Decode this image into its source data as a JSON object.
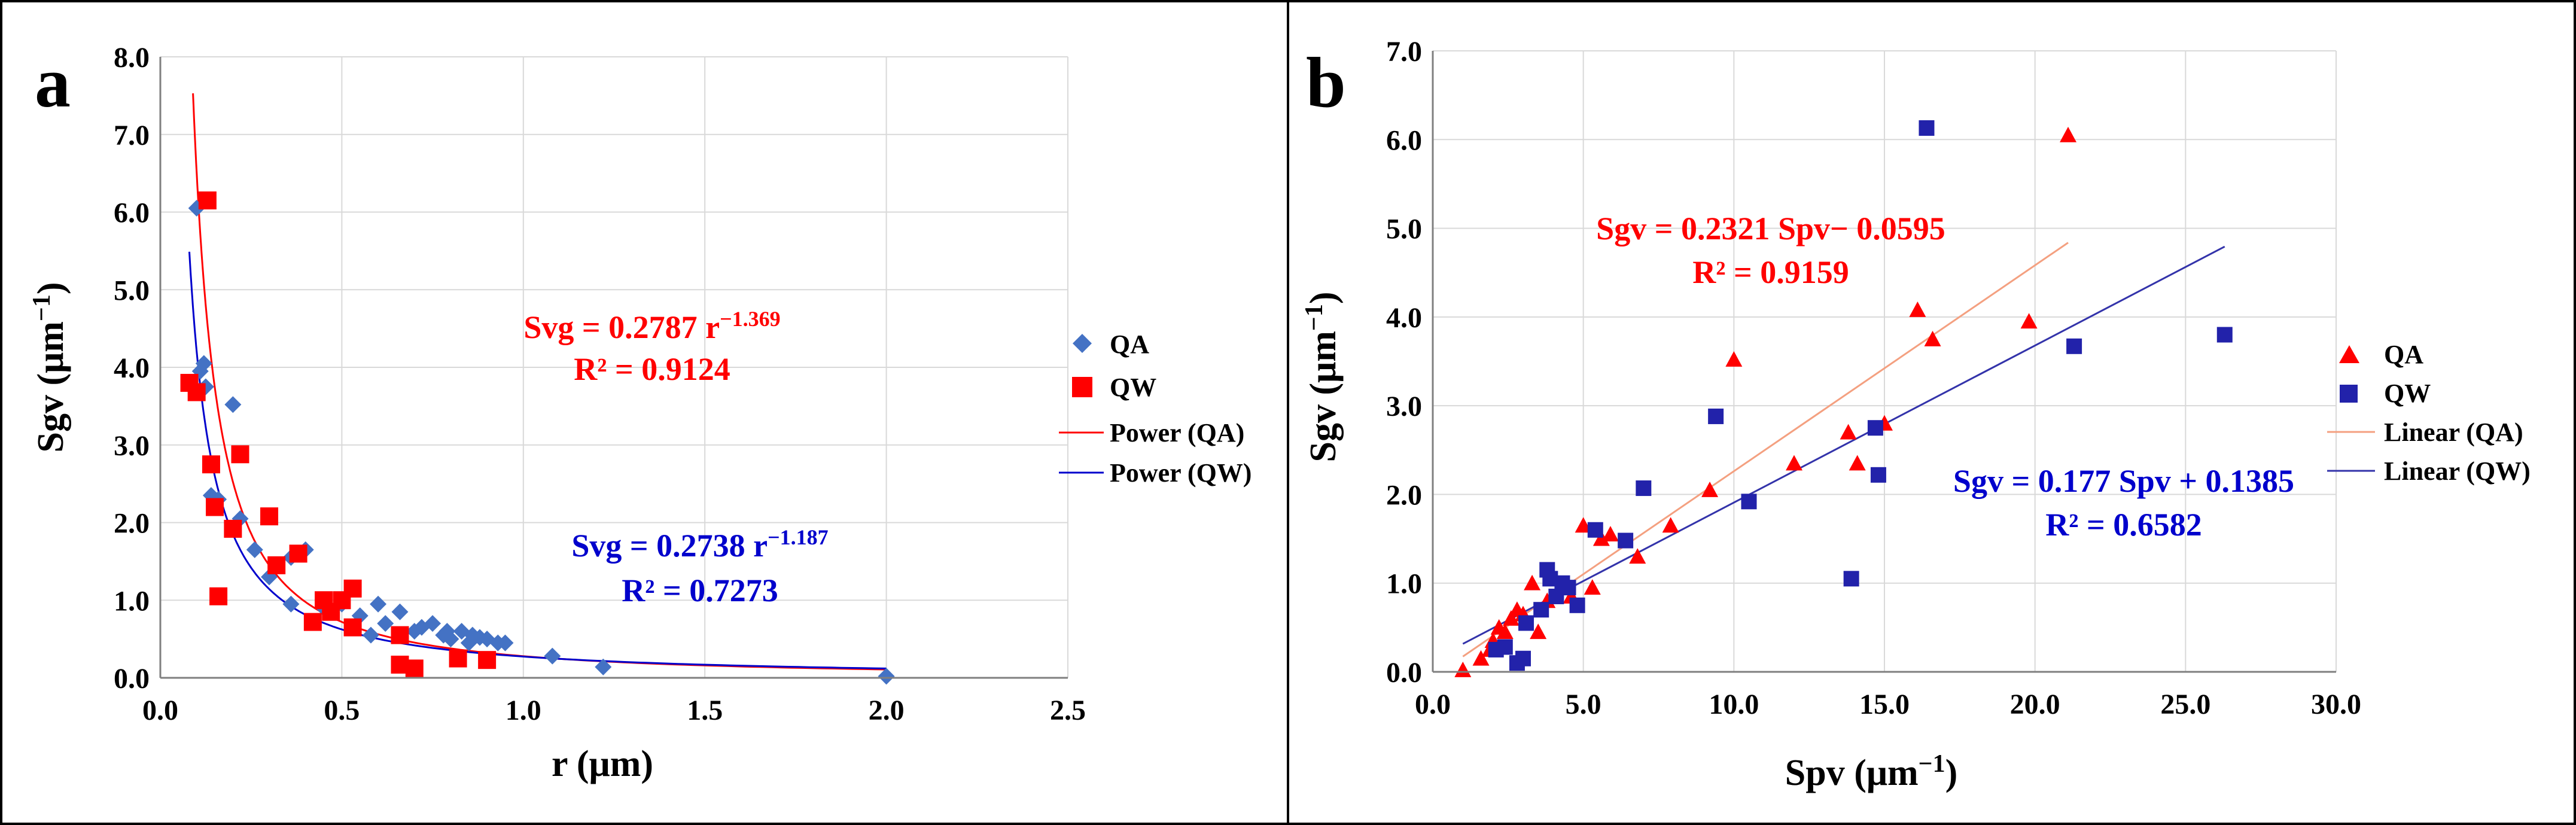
{
  "chart_data": [
    {
      "type": "scatter",
      "panel_label": "a",
      "xlabel": "r (μm)",
      "ylabel_main": "Sgv (μm",
      "ylabel_sup": "−1",
      "ylabel_close": ")",
      "xlim": [
        0,
        2.5
      ],
      "ylim": [
        0,
        8
      ],
      "x_ticks": [
        "0.0",
        "0.5",
        "1.0",
        "1.5",
        "2.0",
        "2.5"
      ],
      "y_ticks": [
        "0.0",
        "1.0",
        "2.0",
        "3.0",
        "4.0",
        "5.0",
        "6.0",
        "7.0",
        "8.0"
      ],
      "grid": true,
      "legend_position": "right",
      "series": [
        {
          "name": "QA",
          "marker": "diamond",
          "color": "#4472C4",
          "points": [
            [
              0.1,
              6.05
            ],
            [
              0.11,
              3.95
            ],
            [
              0.12,
              4.05
            ],
            [
              0.125,
              3.75
            ],
            [
              0.14,
              2.35
            ],
            [
              0.16,
              2.3
            ],
            [
              0.2,
              3.52
            ],
            [
              0.22,
              2.05
            ],
            [
              0.26,
              1.65
            ],
            [
              0.3,
              1.3
            ],
            [
              0.36,
              1.55
            ],
            [
              0.4,
              1.65
            ],
            [
              0.36,
              0.95
            ],
            [
              0.45,
              0.9
            ],
            [
              0.5,
              0.95
            ],
            [
              0.55,
              0.8
            ],
            [
              0.58,
              0.55
            ],
            [
              0.6,
              0.95
            ],
            [
              0.62,
              0.7
            ],
            [
              0.66,
              0.85
            ],
            [
              0.7,
              0.6
            ],
            [
              0.72,
              0.65
            ],
            [
              0.75,
              0.7
            ],
            [
              0.78,
              0.55
            ],
            [
              0.8,
              0.5
            ],
            [
              0.83,
              0.6
            ],
            [
              0.85,
              0.45
            ],
            [
              0.86,
              0.55
            ],
            [
              0.88,
              0.52
            ],
            [
              0.9,
              0.5
            ],
            [
              0.93,
              0.45
            ],
            [
              0.95,
              0.45
            ],
            [
              0.79,
              0.6
            ],
            [
              1.08,
              0.28
            ],
            [
              1.22,
              0.14
            ],
            [
              2.0,
              0.02
            ]
          ]
        },
        {
          "name": "QW",
          "marker": "square",
          "color": "#FF0000",
          "points": [
            [
              0.08,
              3.8
            ],
            [
              0.1,
              3.68
            ],
            [
              0.13,
              6.15
            ],
            [
              0.14,
              2.75
            ],
            [
              0.15,
              2.2
            ],
            [
              0.16,
              1.05
            ],
            [
              0.2,
              1.92
            ],
            [
              0.22,
              2.88
            ],
            [
              0.3,
              2.08
            ],
            [
              0.32,
              1.45
            ],
            [
              0.38,
              1.6
            ],
            [
              0.42,
              0.72
            ],
            [
              0.45,
              1.0
            ],
            [
              0.47,
              0.85
            ],
            [
              0.5,
              1.0
            ],
            [
              0.53,
              1.15
            ],
            [
              0.53,
              0.65
            ],
            [
              0.66,
              0.55
            ],
            [
              0.66,
              0.17
            ],
            [
              0.7,
              0.12
            ],
            [
              0.82,
              0.25
            ],
            [
              0.9,
              0.23
            ]
          ]
        },
        {
          "name": "Power (QA)",
          "type": "fit",
          "color": "#FF0000",
          "coef": 0.2787,
          "exponent": -1.369,
          "x_range": [
            0.09,
            2.0
          ]
        },
        {
          "name": "Power (QW)",
          "type": "fit",
          "color": "#0000CC",
          "coef": 0.2738,
          "exponent": -1.187,
          "x_range": [
            0.08,
            2.0
          ]
        }
      ],
      "annotations": [
        {
          "color": "#FF0000",
          "eq_main": "Svg = 0.2787 r",
          "eq_sup": "−1.369",
          "r2": "R² = 0.9124"
        },
        {
          "color": "#0000CC",
          "eq_main": "Svg = 0.2738 r",
          "eq_sup": "−1.187",
          "r2": "R² = 0.7273"
        }
      ]
    },
    {
      "type": "scatter",
      "panel_label": "b",
      "xlabel_main": "Spv (μm",
      "xlabel_sup": "−1",
      "xlabel_close": ")",
      "ylabel_main": "Sgv (μm",
      "ylabel_sup": "−1",
      "ylabel_close": ")",
      "xlim": [
        0,
        30
      ],
      "ylim": [
        0,
        7
      ],
      "x_ticks": [
        "0.0",
        "5.0",
        "10.0",
        "15.0",
        "20.0",
        "25.0",
        "30.0"
      ],
      "y_ticks": [
        "0.0",
        "1.0",
        "2.0",
        "3.0",
        "4.0",
        "5.0",
        "6.0",
        "7.0"
      ],
      "grid": true,
      "legend_position": "right",
      "series": [
        {
          "name": "QA",
          "marker": "triangle",
          "color": "#FF0000",
          "points": [
            [
              1.0,
              0.02
            ],
            [
              1.6,
              0.15
            ],
            [
              1.9,
              0.25
            ],
            [
              2.0,
              0.35
            ],
            [
              2.2,
              0.5
            ],
            [
              2.4,
              0.45
            ],
            [
              2.6,
              0.6
            ],
            [
              2.8,
              0.7
            ],
            [
              3.0,
              0.65
            ],
            [
              3.3,
              1.0
            ],
            [
              3.5,
              0.45
            ],
            [
              3.8,
              0.8
            ],
            [
              4.3,
              0.95
            ],
            [
              4.6,
              0.85
            ],
            [
              5.0,
              1.65
            ],
            [
              5.3,
              0.95
            ],
            [
              5.6,
              1.5
            ],
            [
              5.9,
              1.55
            ],
            [
              6.8,
              1.3
            ],
            [
              7.9,
              1.65
            ],
            [
              9.2,
              2.05
            ],
            [
              10.0,
              3.52
            ],
            [
              12.0,
              2.35
            ],
            [
              13.8,
              2.7
            ],
            [
              14.1,
              2.35
            ],
            [
              15.0,
              2.8
            ],
            [
              16.1,
              4.08
            ],
            [
              16.6,
              3.75
            ],
            [
              19.8,
              3.95
            ],
            [
              21.1,
              6.05
            ]
          ]
        },
        {
          "name": "QW",
          "marker": "square",
          "color": "#2222AA",
          "points": [
            [
              2.1,
              0.25
            ],
            [
              2.4,
              0.28
            ],
            [
              2.8,
              0.1
            ],
            [
              3.0,
              0.15
            ],
            [
              3.1,
              0.55
            ],
            [
              3.6,
              0.7
            ],
            [
              3.8,
              1.15
            ],
            [
              3.9,
              1.05
            ],
            [
              4.1,
              0.85
            ],
            [
              4.3,
              1.0
            ],
            [
              4.5,
              0.95
            ],
            [
              4.8,
              0.75
            ],
            [
              5.4,
              1.6
            ],
            [
              6.4,
              1.48
            ],
            [
              7.0,
              2.07
            ],
            [
              9.4,
              2.88
            ],
            [
              10.5,
              1.92
            ],
            [
              13.9,
              1.05
            ],
            [
              14.7,
              2.75
            ],
            [
              14.8,
              2.22
            ],
            [
              16.4,
              6.13
            ],
            [
              21.3,
              3.67
            ],
            [
              26.3,
              3.8
            ]
          ]
        },
        {
          "name": "Linear (QA)",
          "type": "fit",
          "color": "#F4A080",
          "slope": 0.2321,
          "intercept": -0.0595,
          "x_range": [
            1.0,
            21.1
          ]
        },
        {
          "name": "Linear (QW)",
          "type": "fit",
          "color": "#3333AA",
          "slope": 0.177,
          "intercept": 0.1385,
          "x_range": [
            1.0,
            26.3
          ]
        }
      ],
      "annotations": [
        {
          "color": "#FF0000",
          "eq_main": "Sgv = 0.2321 Spv− 0.0595",
          "r2": "R² = 0.9159"
        },
        {
          "color": "#0000CC",
          "eq_main": "Sgv = 0.177 Spv + 0.1385",
          "r2": "R² = 0.6582"
        }
      ]
    }
  ]
}
